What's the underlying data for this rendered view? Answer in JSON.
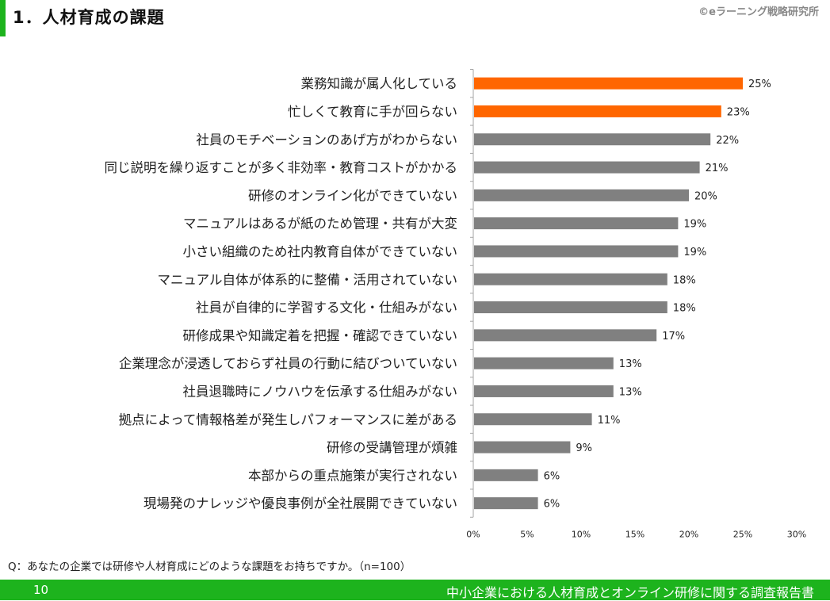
{
  "header": {
    "title": "1．人材育成の課題",
    "copyright": "©eラーニング戦略研究所"
  },
  "chart_data": {
    "type": "bar",
    "orientation": "horizontal",
    "categories": [
      "業務知識が属人化している",
      "忙しくて教育に手が回らない",
      "社員のモチベーションのあげ方がわからない",
      "同じ説明を繰り返すことが多く非効率・教育コストがかかる",
      "研修のオンライン化ができていない",
      "マニュアルはあるが紙のため管理・共有が大変",
      "小さい組織のため社内教育自体ができていない",
      "マニュアル自体が体系的に整備・活用されていない",
      "社員が自律的に学習する文化・仕組みがない",
      "研修成果や知識定着を把握・確認できていない",
      "企業理念が浸透しておらず社員の行動に結びついていない",
      "社員退職時にノウハウを伝承する仕組みがない",
      "拠点によって情報格差が発生しパフォーマンスに差がある",
      "研修の受講管理が煩雑",
      "本部からの重点施策が実行されない",
      "現場発のナレッジや優良事例が全社展開できていない"
    ],
    "values": [
      25,
      23,
      22,
      21,
      20,
      19,
      19,
      18,
      18,
      17,
      13,
      13,
      11,
      9,
      6,
      6
    ],
    "value_labels": [
      "25%",
      "23%",
      "22%",
      "21%",
      "20%",
      "19%",
      "19%",
      "18%",
      "18%",
      "17%",
      "13%",
      "13%",
      "11%",
      "9%",
      "6%",
      "6%"
    ],
    "highlight_count": 2,
    "xlim": [
      0,
      30
    ],
    "xticks": [
      "0%",
      "5%",
      "10%",
      "15%",
      "20%",
      "25%",
      "30%"
    ],
    "colors": {
      "highlight": "#ff6600",
      "default": "#808080"
    },
    "grid": false
  },
  "question": "Q：あなたの企業では研修や人材育成にどのような課題をお持ちですか。（n=100）",
  "footer": {
    "page_number": "10",
    "report_title": "中小企業における人材育成とオンライン研修に関する調査報告書"
  }
}
